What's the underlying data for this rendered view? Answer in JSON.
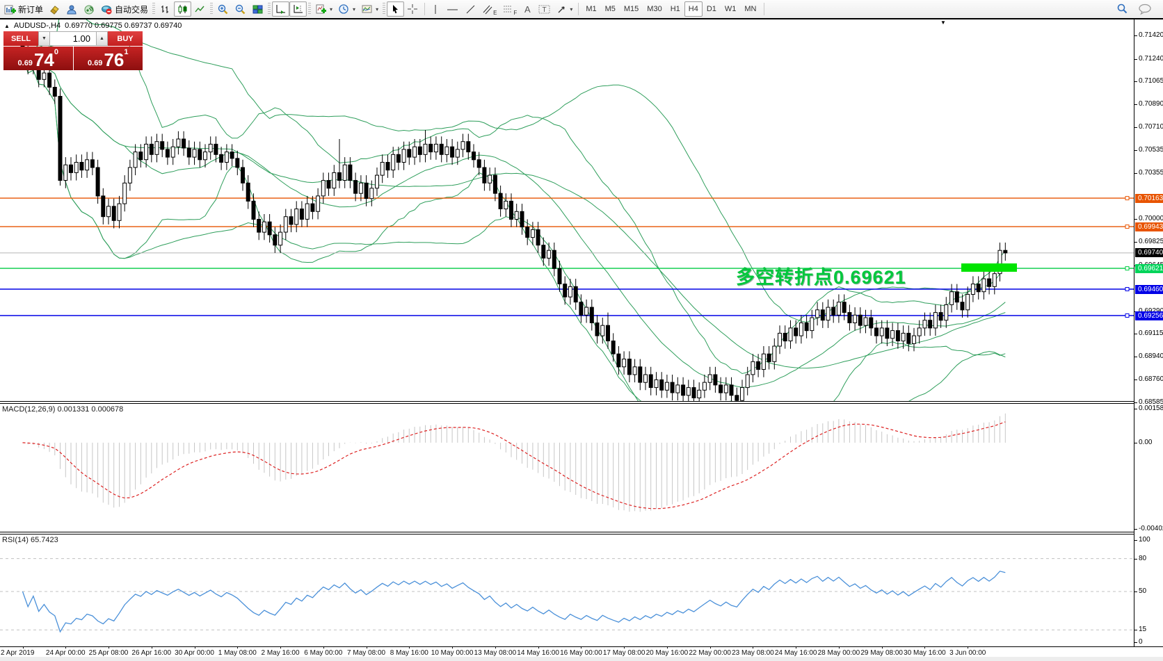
{
  "ui": {
    "toolbar": {
      "new_order": "新订单",
      "autotrade": "自动交易",
      "tool_labels": {
        "channel": "E",
        "fibo": "F",
        "text": "A",
        "label": "T"
      },
      "timeframes": [
        "M1",
        "M5",
        "M15",
        "M30",
        "H1",
        "H4",
        "D1",
        "W1",
        "MN"
      ],
      "active_timeframe": "H4"
    },
    "chart_title": {
      "collapse_icon": "▲",
      "symbol_period": "AUDUSD-,H4",
      "ohlc": "0.69770 0.69775 0.69737 0.69740"
    },
    "trade_panel": {
      "sell_label": "SELL",
      "buy_label": "BUY",
      "volume": "1.00",
      "sell_price": {
        "small": "0.69",
        "big": "74",
        "sup": "0"
      },
      "buy_price": {
        "small": "0.69",
        "big": "76",
        "sup": "1"
      }
    },
    "scroll_marker": "▼"
  },
  "chart_data": {
    "type": "candlestick",
    "symbol": "AUDUSD-",
    "timeframe": "H4",
    "annotation": {
      "text": "多空转折点0.69621",
      "color": "#00c83c"
    },
    "highlight": {
      "color": "#00e400",
      "near_price": 0.69621
    },
    "y_axis": {
      "anchor_max": 0.7142,
      "anchor_min": 0.68585,
      "ticks": [
        0.7142,
        0.7124,
        0.71065,
        0.7089,
        0.7071,
        0.70535,
        0.70355,
        0.7,
        0.69825,
        0.69645,
        0.6929,
        0.69115,
        0.6894,
        0.6876,
        0.68585
      ],
      "badges": [
        {
          "price": 0.70163,
          "text": "0.70163",
          "bg": "#e85400"
        },
        {
          "price": 0.69943,
          "text": "0.69943",
          "bg": "#e85400"
        },
        {
          "price": 0.6974,
          "text": "0.69740",
          "bg": "#000000"
        },
        {
          "price": 0.69621,
          "text": "0.69621",
          "bg": "#00d45a"
        },
        {
          "price": 0.6946,
          "text": "0.69460",
          "bg": "#0000e6"
        },
        {
          "price": 0.69256,
          "text": "0.69256",
          "bg": "#0000e6"
        }
      ]
    },
    "hlines": [
      {
        "price": 0.70163,
        "color": "#e85400"
      },
      {
        "price": 0.69943,
        "color": "#e85400"
      },
      {
        "price": 0.69621,
        "color": "#00cc44"
      },
      {
        "price": 0.6946,
        "color": "#0000e6"
      },
      {
        "price": 0.69256,
        "color": "#0000e6"
      }
    ],
    "current_price_line": {
      "price": 0.6974,
      "color": "#b4b4b4"
    },
    "x_labels": [
      "2 Apr 2019",
      "24 Apr 00:00",
      "25 Apr 08:00",
      "26 Apr 16:00",
      "30 Apr 00:00",
      "1 May 08:00",
      "2 May 16:00",
      "6 May 00:00",
      "7 May 08:00",
      "8 May 16:00",
      "10 May 00:00",
      "13 May 08:00",
      "14 May 16:00",
      "16 May 00:00",
      "17 May 08:00",
      "20 May 16:00",
      "22 May 00:00",
      "23 May 08:00",
      "24 May 16:00",
      "28 May 00:00",
      "29 May 08:00",
      "30 May 16:00",
      "3 Jun 00:00"
    ],
    "bars_per_label": 8,
    "candles": {
      "note": "H4 candles, open = previous close",
      "first_open": 0.7135,
      "default_wick": 0.0006,
      "closes": [
        0.7128,
        0.7118,
        0.7124,
        0.7108,
        0.7113,
        0.7102,
        0.7095,
        0.703,
        0.7042,
        0.7036,
        0.7044,
        0.7038,
        0.7046,
        0.704,
        0.7018,
        0.7002,
        0.701,
        0.6999,
        0.7012,
        0.7028,
        0.704,
        0.7052,
        0.7046,
        0.7058,
        0.705,
        0.706,
        0.7054,
        0.7048,
        0.7056,
        0.7062,
        0.7055,
        0.7048,
        0.7054,
        0.7046,
        0.7052,
        0.7058,
        0.705,
        0.7044,
        0.7052,
        0.7047,
        0.704,
        0.7028,
        0.7014,
        0.7,
        0.699,
        0.6998,
        0.6988,
        0.698,
        0.699,
        0.7002,
        0.6996,
        0.7008,
        0.7,
        0.7012,
        0.7006,
        0.7018,
        0.703,
        0.7024,
        0.7036,
        0.703,
        0.7042,
        0.703,
        0.702,
        0.7028,
        0.7016,
        0.7024,
        0.7034,
        0.7044,
        0.7038,
        0.705,
        0.7044,
        0.7054,
        0.7048,
        0.7056,
        0.705,
        0.7058,
        0.7052,
        0.7058,
        0.705,
        0.7056,
        0.7048,
        0.7054,
        0.706,
        0.7052,
        0.7046,
        0.704,
        0.7028,
        0.7034,
        0.702,
        0.7008,
        0.7014,
        0.7,
        0.7006,
        0.6994,
        0.6986,
        0.6992,
        0.698,
        0.697,
        0.6976,
        0.6962,
        0.695,
        0.694,
        0.6948,
        0.6936,
        0.6926,
        0.6932,
        0.692,
        0.691,
        0.6918,
        0.6906,
        0.6896,
        0.6886,
        0.6892,
        0.688,
        0.6886,
        0.6874,
        0.688,
        0.687,
        0.6876,
        0.6868,
        0.6874,
        0.6866,
        0.6872,
        0.6864,
        0.687,
        0.6862,
        0.6868,
        0.6874,
        0.688,
        0.6872,
        0.6866,
        0.6872,
        0.6864,
        0.686,
        0.687,
        0.688,
        0.689,
        0.6884,
        0.6896,
        0.689,
        0.6902,
        0.6912,
        0.6906,
        0.6916,
        0.691,
        0.692,
        0.6914,
        0.6924,
        0.693,
        0.6922,
        0.6932,
        0.6926,
        0.6936,
        0.6928,
        0.692,
        0.6926,
        0.6918,
        0.6924,
        0.6916,
        0.691,
        0.6916,
        0.6908,
        0.6914,
        0.6906,
        0.6912,
        0.6904,
        0.691,
        0.6916,
        0.6922,
        0.6916,
        0.6928,
        0.6922,
        0.6934,
        0.6944,
        0.6936,
        0.693,
        0.6942,
        0.695,
        0.6944,
        0.6954,
        0.6948,
        0.6958,
        0.6976,
        0.6974
      ],
      "special_wicks": {
        "0": {
          "h": 0.7137
        },
        "7": {
          "l": 0.7026
        },
        "59": {
          "h": 0.7062
        },
        "75": {
          "h": 0.7069
        },
        "109": {
          "h": 0.6928
        },
        "133": {
          "l": 0.6859
        },
        "182": {
          "h": 0.6982
        }
      }
    },
    "overlays": [
      {
        "name": "bollinger_fast",
        "period": 20,
        "deviation": 2,
        "color": "#2e9e5b"
      },
      {
        "name": "bollinger_slow",
        "period": 40,
        "deviation": 2,
        "color": "#2e9e5b"
      }
    ],
    "macd": {
      "label": "MACD(12,26,9) 0.001331 0.000678",
      "params": [
        12,
        26,
        9
      ],
      "value": 0.001331,
      "signal_value": 0.000678,
      "scale_labels": [
        "0.001585",
        "0.00",
        "-0.00402"
      ],
      "scale_max": 0.001585,
      "scale_min": -0.00402,
      "histogram_color": "#c6c6c6",
      "signal_color": "#dd2222"
    },
    "rsi": {
      "label": "RSI(14) 65.7423",
      "period": 14,
      "value": 65.7423,
      "levels": [
        80,
        50,
        15
      ],
      "scale_labels": [
        "100",
        "80",
        "50",
        "15",
        "0"
      ],
      "scale_max": 100,
      "scale_min": 0,
      "color": "#4a90d9",
      "level_color": "#c0c0c0"
    }
  }
}
